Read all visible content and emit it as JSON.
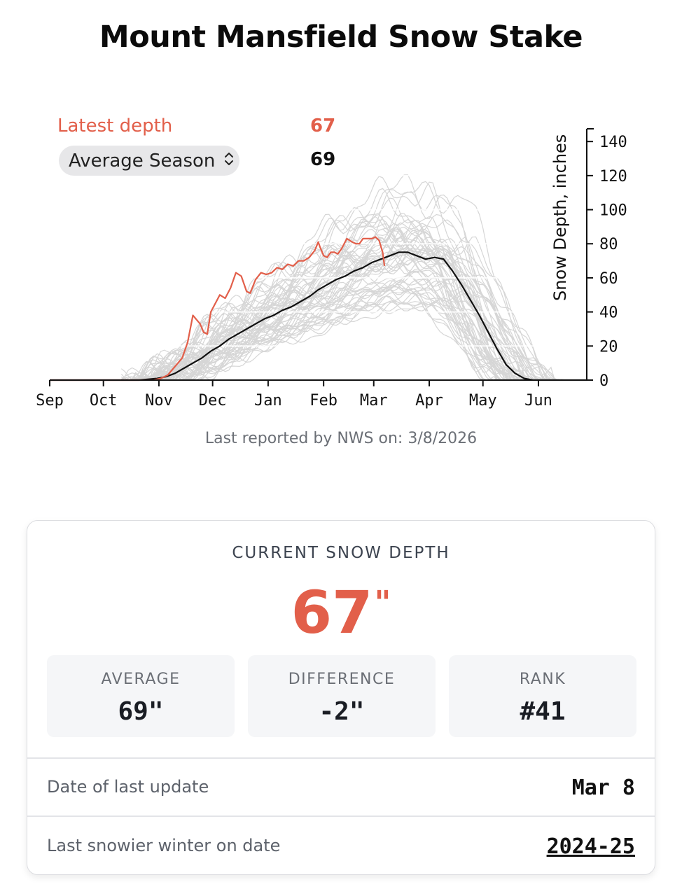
{
  "page": {
    "title": "Mount Mansfield Snow Stake"
  },
  "legend": {
    "latest_label": "Latest depth",
    "latest_value": "67",
    "season_select": "Average Season",
    "average_value": "69"
  },
  "footer_note": "Last reported by NWS on: 3/8/2026",
  "colors": {
    "accent": "#e25f4a",
    "history": "#d6d6d6",
    "average": "#111111"
  },
  "chart_data": {
    "type": "line",
    "title": "Mount Mansfield Snow Stake",
    "xlabel": "",
    "ylabel": "Snow Depth, inches",
    "x_unit": "days since Sep 1",
    "xlim": [
      0,
      300
    ],
    "ylim": [
      0,
      145
    ],
    "x_ticks": [
      {
        "label": "Sep",
        "x": 0
      },
      {
        "label": "Oct",
        "x": 30
      },
      {
        "label": "Nov",
        "x": 61
      },
      {
        "label": "Dec",
        "x": 91
      },
      {
        "label": "Jan",
        "x": 122
      },
      {
        "label": "Feb",
        "x": 153
      },
      {
        "label": "Mar",
        "x": 181
      },
      {
        "label": "Apr",
        "x": 212
      },
      {
        "label": "May",
        "x": 242
      },
      {
        "label": "Jun",
        "x": 273
      }
    ],
    "y_ticks": [
      0,
      20,
      40,
      60,
      80,
      100,
      120,
      140
    ],
    "y_axis_side": "right",
    "series": [
      {
        "name": "Latest depth",
        "x": [
          0,
          45,
          58,
          62,
          66,
          70,
          74,
          77,
          80,
          84,
          86,
          88,
          90,
          93,
          95,
          98,
          101,
          104,
          107,
          110,
          112,
          115,
          118,
          121,
          124,
          127,
          130,
          133,
          136,
          139,
          142,
          145,
          148,
          150,
          151,
          153,
          155,
          157,
          159,
          161,
          163,
          166,
          169,
          171,
          173,
          175,
          178,
          180,
          182,
          184,
          186,
          187
        ],
        "y": [
          0,
          0,
          0,
          1,
          3,
          8,
          13,
          22,
          38,
          33,
          28,
          27,
          40,
          46,
          50,
          48,
          54,
          63,
          61,
          52,
          51,
          59,
          63,
          62,
          63,
          66,
          65,
          68,
          67,
          70,
          70,
          72,
          76,
          81,
          78,
          73,
          72,
          75,
          75,
          74,
          77,
          83,
          81,
          80,
          80,
          83,
          83,
          83,
          84,
          82,
          75,
          67
        ]
      },
      {
        "name": "Average Season",
        "x": [
          0,
          50,
          60,
          65,
          70,
          75,
          80,
          85,
          90,
          95,
          100,
          105,
          110,
          115,
          120,
          125,
          130,
          135,
          140,
          145,
          150,
          155,
          160,
          165,
          170,
          175,
          180,
          185,
          190,
          195,
          200,
          205,
          210,
          215,
          220,
          225,
          230,
          235,
          240,
          245,
          250,
          255,
          260,
          265,
          270,
          275,
          280,
          285,
          300
        ],
        "y": [
          0,
          0,
          1,
          2,
          4,
          7,
          10,
          13,
          17,
          20,
          24,
          27,
          30,
          33,
          36,
          38,
          41,
          43,
          46,
          49,
          53,
          56,
          59,
          61,
          64,
          66,
          69,
          71,
          73,
          75,
          75,
          73,
          71,
          72,
          71,
          64,
          56,
          47,
          38,
          28,
          18,
          9,
          4,
          1,
          0,
          0,
          0,
          0,
          0
        ]
      }
    ],
    "historical_seasons": "faint gray lines, one per past season"
  },
  "card": {
    "title": "CURRENT SNOW DEPTH",
    "current_value": "67",
    "current_unit": "\"",
    "stats": [
      {
        "label": "AVERAGE",
        "value": "69\""
      },
      {
        "label": "DIFFERENCE",
        "value": "-2\""
      },
      {
        "label": "RANK",
        "value": "#41"
      }
    ],
    "rows": [
      {
        "label": "Date of last update",
        "value": "Mar 8"
      },
      {
        "label": "Last snowier winter on date",
        "value": "2024-25"
      }
    ]
  }
}
